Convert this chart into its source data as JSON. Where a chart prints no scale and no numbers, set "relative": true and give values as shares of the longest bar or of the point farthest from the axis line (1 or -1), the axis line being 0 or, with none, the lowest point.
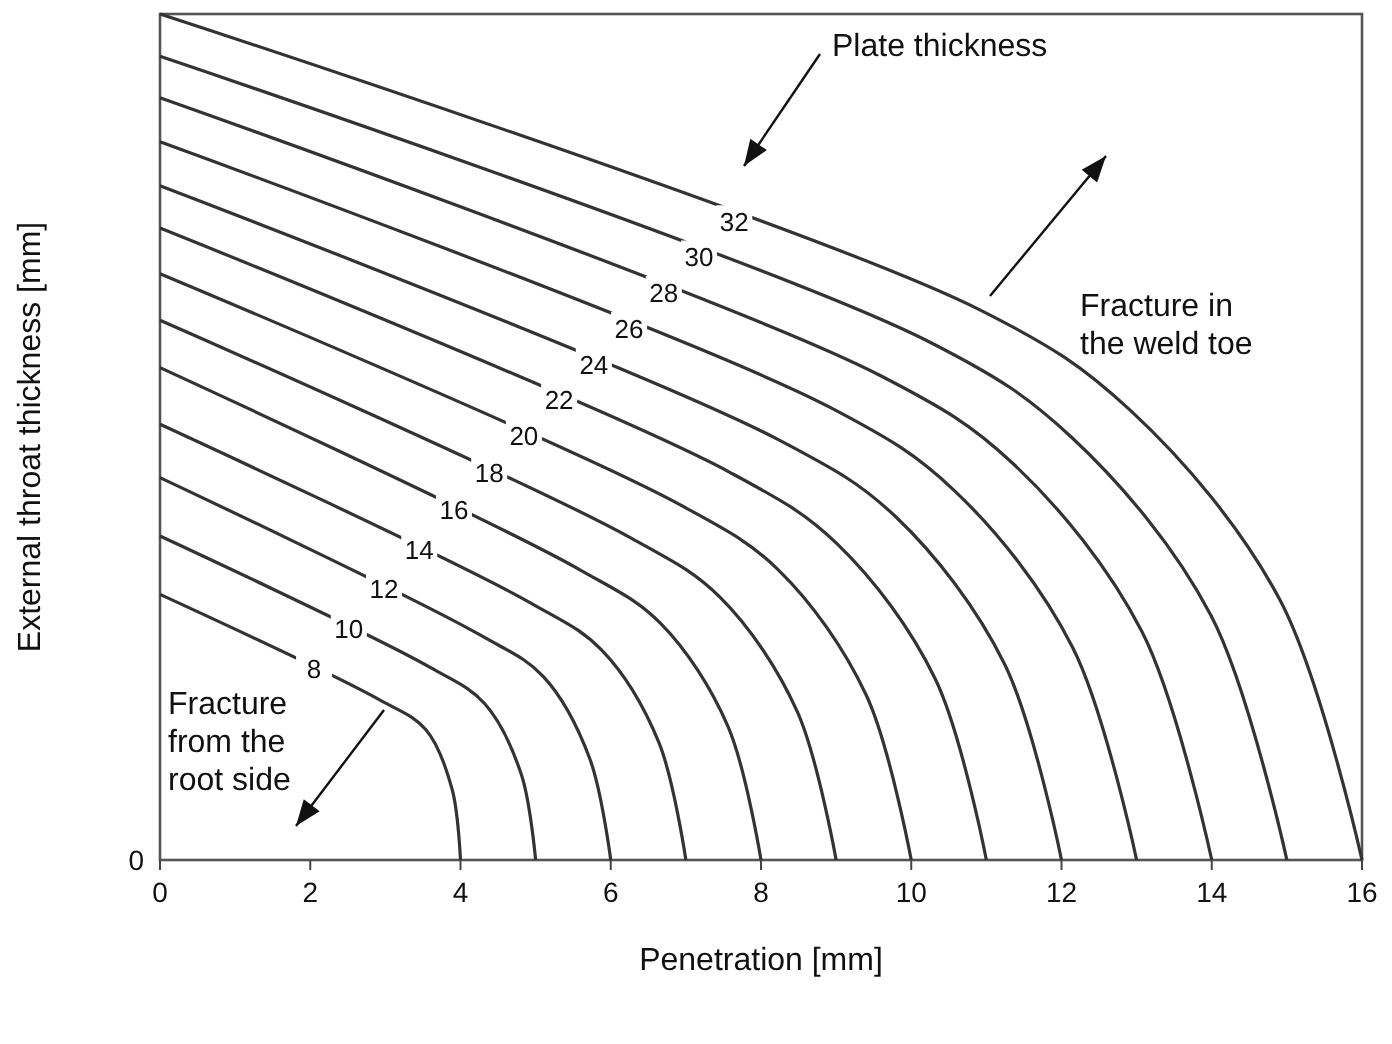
{
  "chart_data": {
    "type": "line",
    "relative": true,
    "xlabel": "Penetration [mm]",
    "ylabel": "External throat thickness [mm]",
    "xlim": [
      0,
      16
    ],
    "xticks": [
      0,
      2,
      4,
      6,
      8,
      10,
      12,
      14,
      16
    ],
    "grid": false,
    "marker": "none",
    "line_style": "solid",
    "series": [
      {
        "name": "8",
        "color": "#333333",
        "x": [
          0,
          2.93,
          3.54,
          3.89,
          4
        ],
        "values": [
          0.314,
          0.189,
          0.154,
          0.083,
          0
        ]
      },
      {
        "name": "10",
        "color": "#333333",
        "x": [
          0,
          3.59,
          4.32,
          4.81,
          5
        ],
        "values": [
          0.383,
          0.228,
          0.185,
          0.101,
          0
        ]
      },
      {
        "name": "12",
        "color": "#333333",
        "x": [
          0,
          4.26,
          5.1,
          5.72,
          6
        ],
        "values": [
          0.452,
          0.266,
          0.217,
          0.12,
          0
        ]
      },
      {
        "name": "14",
        "color": "#333333",
        "x": [
          0,
          4.93,
          5.88,
          6.64,
          7
        ],
        "values": [
          0.515,
          0.304,
          0.248,
          0.139,
          0
        ]
      },
      {
        "name": "16",
        "color": "#333333",
        "x": [
          0,
          5.59,
          6.66,
          7.56,
          8
        ],
        "values": [
          0.582,
          0.343,
          0.28,
          0.158,
          0
        ]
      },
      {
        "name": "18",
        "color": "#333333",
        "x": [
          0,
          6.26,
          7.45,
          8.48,
          9
        ],
        "values": [
          0.638,
          0.381,
          0.311,
          0.176,
          0
        ]
      },
      {
        "name": "20",
        "color": "#333333",
        "x": [
          0,
          6.92,
          8.23,
          9.4,
          10
        ],
        "values": [
          0.693,
          0.42,
          0.343,
          0.195,
          0
        ]
      },
      {
        "name": "22",
        "color": "#333333",
        "x": [
          0,
          7.59,
          9.01,
          10.32,
          11
        ],
        "values": [
          0.747,
          0.458,
          0.374,
          0.214,
          0
        ]
      },
      {
        "name": "24",
        "color": "#333333",
        "x": [
          0,
          8.25,
          9.79,
          11.24,
          12
        ],
        "values": [
          0.797,
          0.496,
          0.406,
          0.232,
          0
        ]
      },
      {
        "name": "26",
        "color": "#333333",
        "x": [
          0,
          8.92,
          10.57,
          12.15,
          13
        ],
        "values": [
          0.849,
          0.535,
          0.437,
          0.251,
          0
        ]
      },
      {
        "name": "28",
        "color": "#333333",
        "x": [
          0,
          9.58,
          11.35,
          13.07,
          14
        ],
        "values": [
          0.901,
          0.573,
          0.469,
          0.27,
          0
        ]
      },
      {
        "name": "30",
        "color": "#333333",
        "x": [
          0,
          10.25,
          12.13,
          13.99,
          15
        ],
        "values": [
          0.95,
          0.612,
          0.5,
          0.289,
          0
        ]
      },
      {
        "name": "32",
        "color": "#333333",
        "x": [
          0,
          10.92,
          12.91,
          14.91,
          16
        ],
        "values": [
          1,
          0.65,
          0.532,
          0.307,
          0
        ]
      }
    ],
    "annotations": [
      "0",
      "Plate thickness",
      "Fracture in the weld toe",
      "Fracture from the root side"
    ]
  }
}
